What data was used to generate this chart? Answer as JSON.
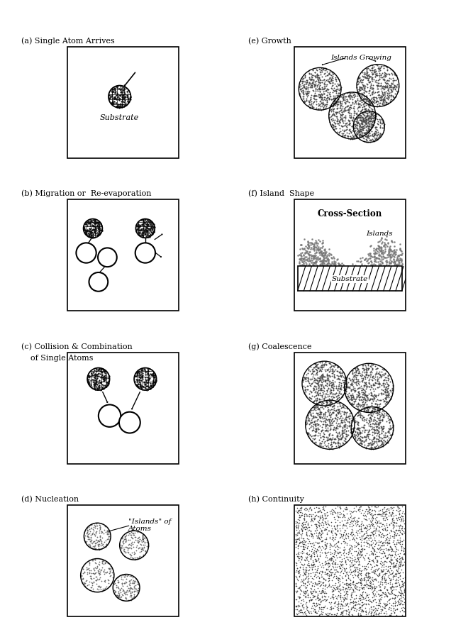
{
  "bg": "#ffffff",
  "panel_labels": {
    "a": "(a) Single Atom Arrives",
    "b": "(b) Migration or  Re-evaporation",
    "c": "(c) Collision & Combination\n    of Single Atoms",
    "d": "(d) Nucleation",
    "e": "(e) Growth",
    "f": "(f) Island  Shape",
    "g": "(g) Coalescence",
    "h": "(h) Continuity"
  },
  "adatom_r": 0.055,
  "open_circle_r": 0.075
}
